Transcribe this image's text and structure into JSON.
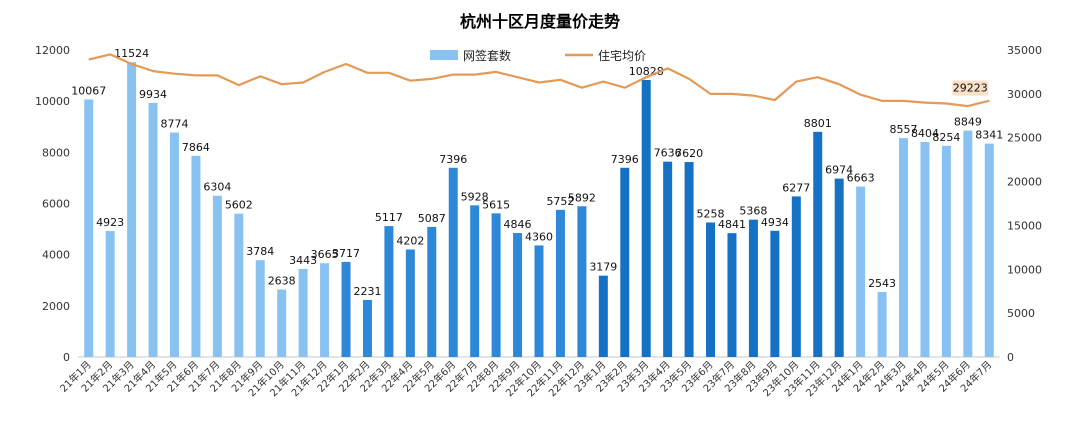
{
  "chart_data": {
    "type": "bar",
    "title": "杭州十区月度量价走势",
    "categories": [
      "21年1月",
      "21年2月",
      "21年3月",
      "21年4月",
      "21年5月",
      "21年6月",
      "21年7月",
      "21年8月",
      "21年9月",
      "21年10月",
      "21年11月",
      "21年12月",
      "22年1月",
      "22年2月",
      "22年3月",
      "22年4月",
      "22年5月",
      "22年6月",
      "22年7月",
      "22年8月",
      "22年9月",
      "22年10月",
      "22年11月",
      "22年12月",
      "23年1月",
      "23年2月",
      "23年3月",
      "23年4月",
      "23年5月",
      "23年6月",
      "23年7月",
      "23年8月",
      "23年9月",
      "23年10月",
      "23年11月",
      "23年12月",
      "24年1月",
      "24年2月",
      "24年3月",
      "24年4月",
      "24年5月",
      "24年6月",
      "24年7月"
    ],
    "series": [
      {
        "name": "网签套数",
        "type": "bar",
        "axis": "left",
        "values": [
          10067,
          4923,
          11524,
          9934,
          8774,
          7864,
          6304,
          5602,
          3784,
          2638,
          3443,
          3665,
          3717,
          2231,
          5117,
          4202,
          5087,
          7396,
          5928,
          5615,
          4846,
          4360,
          5752,
          5892,
          3179,
          7396,
          10828,
          7636,
          7620,
          5258,
          4841,
          5368,
          4934,
          6277,
          8801,
          6974,
          6663,
          2543,
          8557,
          8404,
          8254,
          8849,
          8341
        ],
        "labels": [
          "10067",
          "4923",
          "11524",
          "9934",
          "8774",
          "7864",
          "6304",
          "5602",
          "3784",
          "2638",
          "3443",
          "3665",
          "3717",
          "2231",
          "5117",
          "4202",
          "5087",
          "7396",
          "5928",
          "5615",
          "4846",
          "4360",
          "5752",
          "5892",
          "3179",
          "7396",
          "10828",
          "7636",
          "7620",
          "5258",
          "4841",
          "5368",
          "4934",
          "6277",
          "8801",
          "6974",
          "6663",
          "2543",
          "8557",
          "8404",
          "8254",
          "8849",
          "8341"
        ]
      },
      {
        "name": "住宅均价",
        "type": "line",
        "axis": "right",
        "values": [
          33900,
          34500,
          33400,
          32600,
          32300,
          32100,
          32100,
          31000,
          32000,
          31100,
          31300,
          32500,
          33400,
          32400,
          32400,
          31500,
          31700,
          32200,
          32200,
          32500,
          31900,
          31300,
          31600,
          30700,
          31400,
          30700,
          31900,
          32900,
          31700,
          30000,
          30000,
          29800,
          29300,
          31400,
          31900,
          31100,
          29900,
          29200,
          29200,
          29000,
          28900,
          28600,
          29223
        ],
        "last_label": "29223"
      }
    ],
    "y_left": {
      "min": 0,
      "max": 12000,
      "ticks": [
        "0",
        "2000",
        "4000",
        "6000",
        "8000",
        "10000",
        "12000"
      ]
    },
    "y_right": {
      "min": 0,
      "max": 35000,
      "ticks": [
        "0",
        "5000",
        "10000",
        "15000",
        "20000",
        "25000",
        "30000",
        "35000"
      ]
    },
    "legend_position": "top-center",
    "grid": false,
    "colors": {
      "bar_2021": "#89c2f1",
      "bar_2022": "#2e88d8",
      "bar_2023": "#1571c4",
      "bar_2024": "#89c2f1",
      "line": "#e39a57",
      "callout_bg": "#fbe0c8"
    }
  }
}
